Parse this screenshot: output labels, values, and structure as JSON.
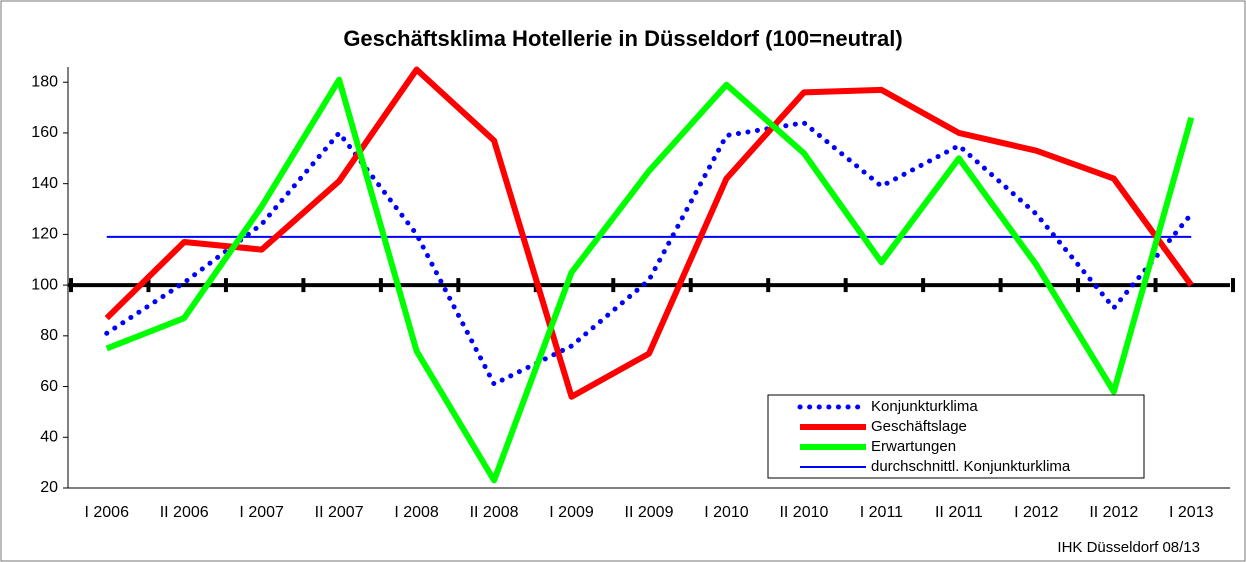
{
  "chart_data": {
    "type": "line",
    "title": "Geschäftsklima Hotellerie in Düsseldorf (100=neutral)",
    "source": "IHK Düsseldorf 08/13",
    "categories": [
      "I 2006",
      "II 2006",
      "I 2007",
      "II 2007",
      "I 2008",
      "II 2008",
      "I 2009",
      "II 2009",
      "I 2010",
      "II 2010",
      "I 2011",
      "II 2011",
      "I 2012",
      "II 2012",
      "I 2013"
    ],
    "series": [
      {
        "name": "Konjunkturklima",
        "color": "#0000ff",
        "style": "dotted",
        "values": [
          81,
          101,
          124,
          160,
          120,
          61,
          76,
          102,
          159,
          164,
          139,
          155,
          128,
          91,
          128
        ]
      },
      {
        "name": "Geschäftslage",
        "color": "#ff0000",
        "style": "thick",
        "values": [
          87,
          117,
          114,
          141,
          185,
          157,
          56,
          73,
          142,
          176,
          177,
          160,
          153,
          142,
          100
        ]
      },
      {
        "name": "Erwartungen",
        "color": "#00ff00",
        "style": "thick",
        "values": [
          75,
          87,
          131,
          181,
          74,
          23,
          105,
          145,
          179,
          152,
          109,
          150,
          108,
          58,
          166
        ]
      },
      {
        "name": "durchschnittl. Konjunkturklima",
        "color": "#0000ff",
        "style": "thin",
        "values": [
          119,
          119,
          119,
          119,
          119,
          119,
          119,
          119,
          119,
          119,
          119,
          119,
          119,
          119,
          119
        ]
      }
    ],
    "reference_line": 100,
    "ylim": [
      20,
      186
    ],
    "yticks": [
      20,
      40,
      60,
      80,
      100,
      120,
      140,
      160,
      180
    ],
    "legend": "lower right"
  }
}
